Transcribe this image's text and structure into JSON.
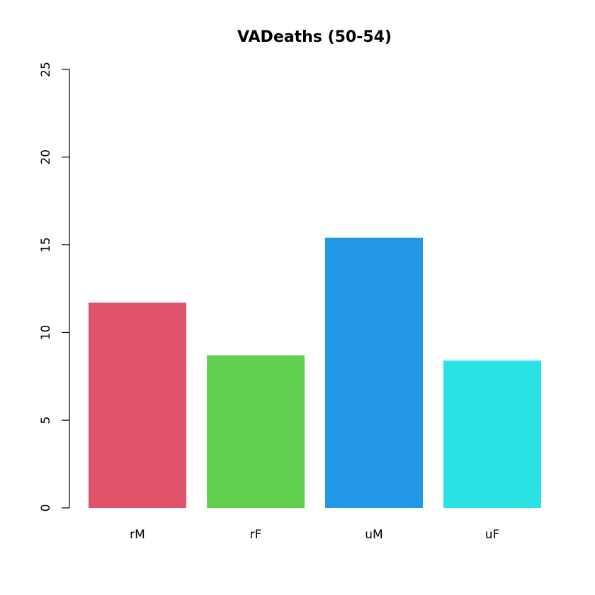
{
  "chart_data": {
    "type": "bar",
    "title": "VADeaths (50-54)",
    "xlabel": "",
    "ylabel": "",
    "categories": [
      "rM",
      "rF",
      "uM",
      "uF"
    ],
    "values": [
      11.7,
      8.7,
      15.4,
      8.4
    ],
    "colors": [
      "#DF536B",
      "#61D04F",
      "#2297E6",
      "#28E2E5"
    ],
    "ylim": [
      0,
      25
    ],
    "yticks": [
      "0",
      "5",
      "10",
      "15",
      "20",
      "25"
    ],
    "grid": false,
    "legend": "none"
  }
}
